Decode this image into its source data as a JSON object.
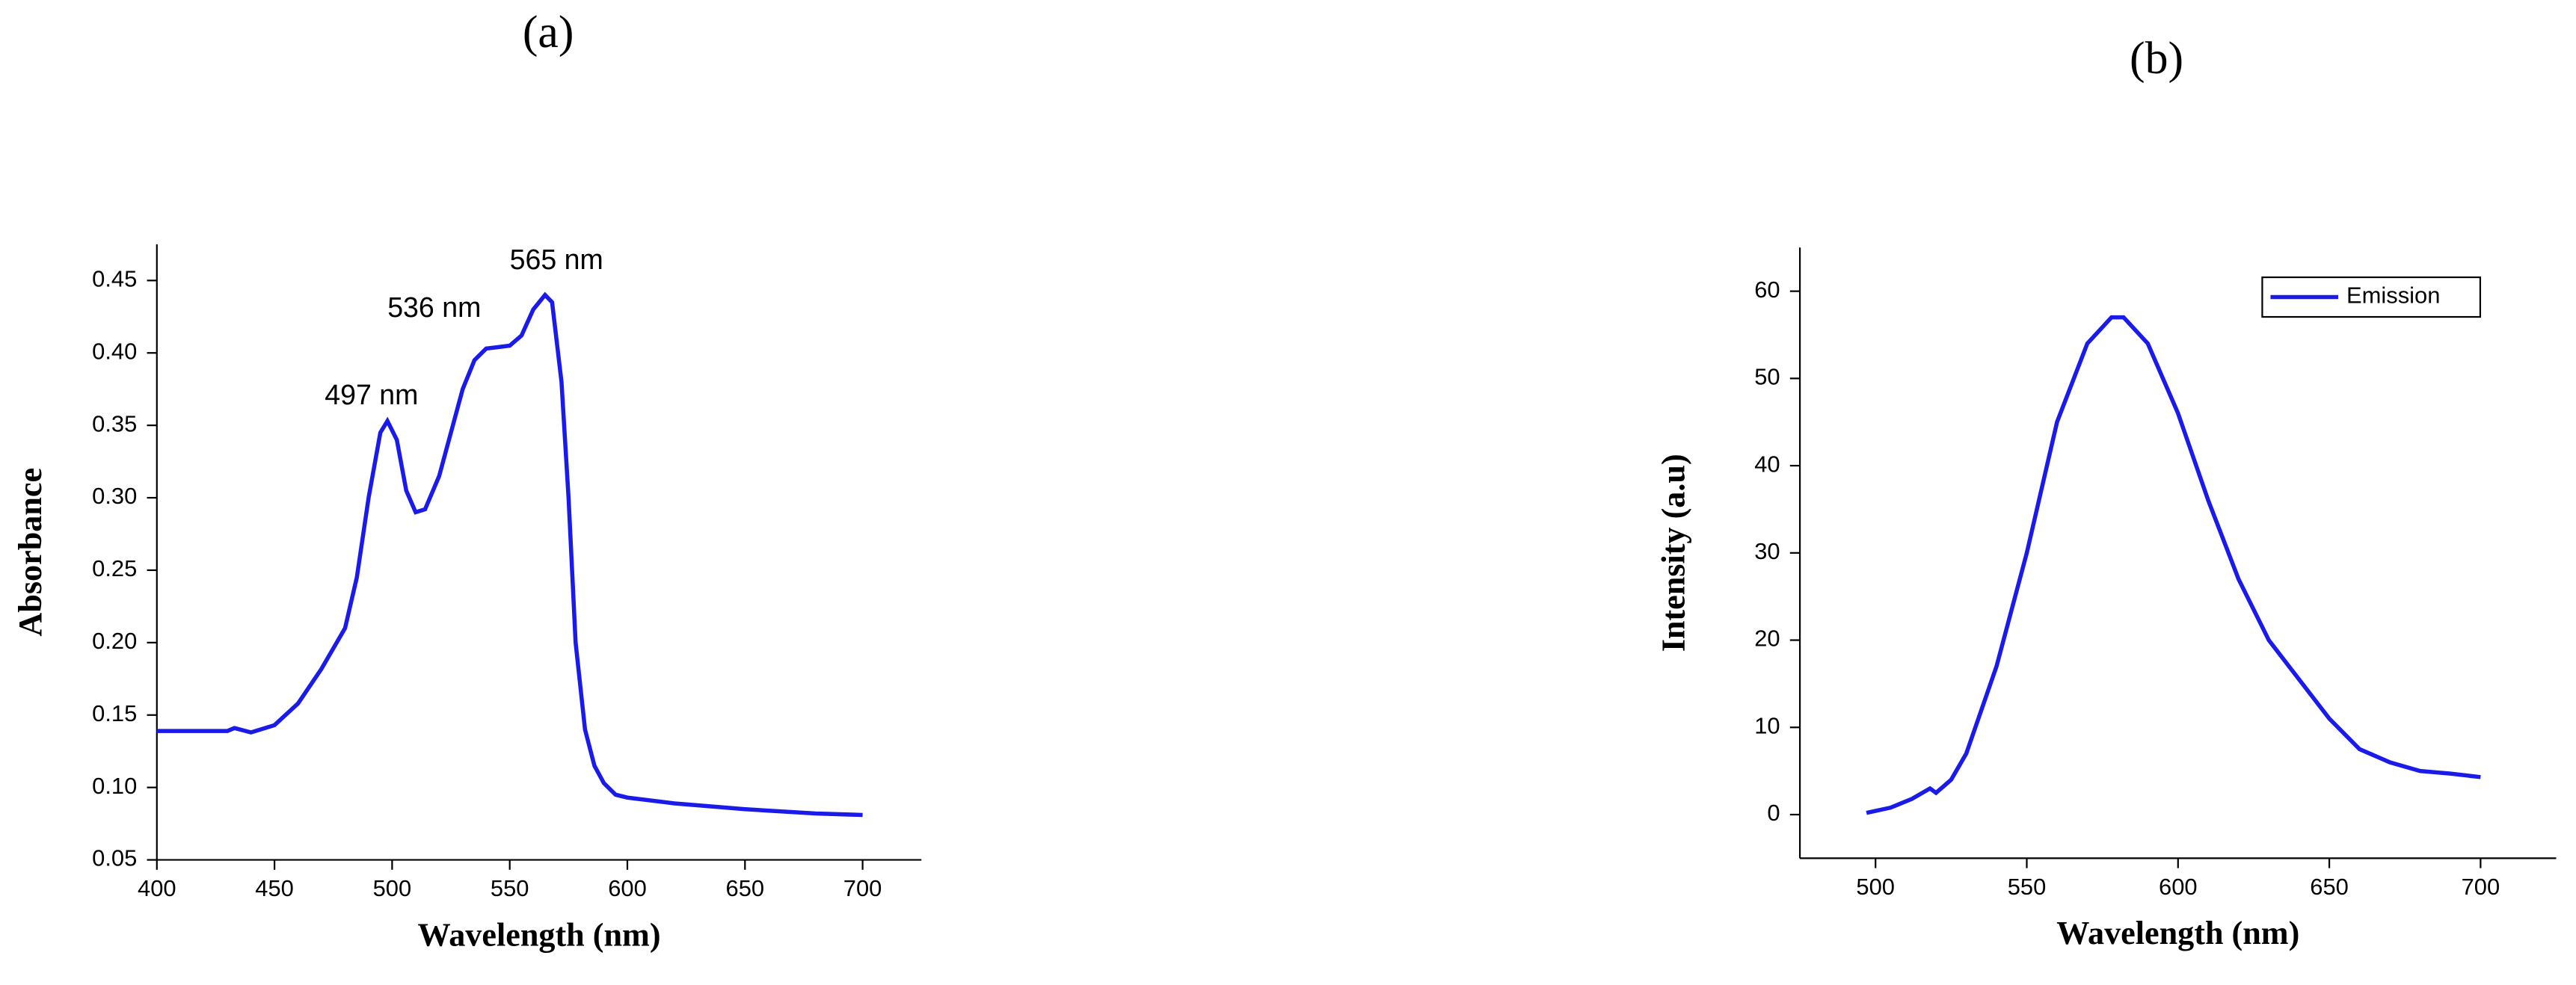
{
  "chart_data": [
    {
      "type": "line",
      "title": "(a)",
      "xlabel": "Wavelength (nm)",
      "ylabel": "Absorbance",
      "annotations": [
        "497 nm",
        "536 nm",
        "565 nm"
      ],
      "x": [
        400,
        430,
        433,
        440,
        450,
        460,
        470,
        480,
        485,
        490,
        495,
        498,
        502,
        506,
        510,
        514,
        520,
        525,
        530,
        535,
        540,
        545,
        550,
        555,
        560,
        565,
        568,
        572,
        575,
        578,
        582,
        586,
        590,
        595,
        600,
        620,
        650,
        680,
        700
      ],
      "series": [
        {
          "color": "#1a1aeb",
          "values": [
            0.139,
            0.139,
            0.141,
            0.138,
            0.143,
            0.158,
            0.182,
            0.21,
            0.245,
            0.3,
            0.345,
            0.353,
            0.34,
            0.305,
            0.29,
            0.292,
            0.315,
            0.345,
            0.375,
            0.395,
            0.403,
            0.404,
            0.405,
            0.412,
            0.43,
            0.44,
            0.435,
            0.38,
            0.3,
            0.2,
            0.14,
            0.115,
            0.103,
            0.095,
            0.093,
            0.089,
            0.085,
            0.082,
            0.081
          ]
        }
      ],
      "xlim": [
        400,
        725
      ],
      "ylim": [
        0.05,
        0.475
      ],
      "xticks": [
        400,
        450,
        500,
        550,
        600,
        650,
        700
      ],
      "yticks": [
        0.05,
        {
          "value": 0.1,
          "label": "0.10"
        },
        0.15,
        {
          "value": 0.2,
          "label": "0.20"
        },
        0.25,
        {
          "value": 0.3,
          "label": "0.30"
        },
        0.35,
        {
          "value": 0.4,
          "label": "0.40"
        },
        0.45
      ]
    },
    {
      "type": "line",
      "title": "(b)",
      "xlabel": "Wavelength (nm)",
      "ylabel": "Intensity (a.u)",
      "legend": "upper right",
      "x": [
        497,
        505,
        512,
        518,
        520,
        525,
        530,
        540,
        550,
        560,
        570,
        578,
        582,
        590,
        600,
        610,
        620,
        630,
        640,
        650,
        660,
        670,
        680,
        690,
        700
      ],
      "series": [
        {
          "name": "Emission",
          "color": "#1a1aeb",
          "values": [
            0.2,
            0.8,
            1.8,
            3,
            2.5,
            4,
            7,
            17,
            30,
            45,
            54,
            57,
            57,
            54,
            46,
            36,
            27,
            20,
            15.5,
            11,
            7.5,
            6,
            5,
            4.7,
            4.3
          ]
        }
      ],
      "xlim": [
        475,
        725
      ],
      "ylim": [
        -5,
        65
      ],
      "xticks": [
        500,
        550,
        600,
        650,
        700
      ],
      "yticks": [
        0,
        10,
        20,
        30,
        40,
        50,
        60
      ]
    }
  ]
}
